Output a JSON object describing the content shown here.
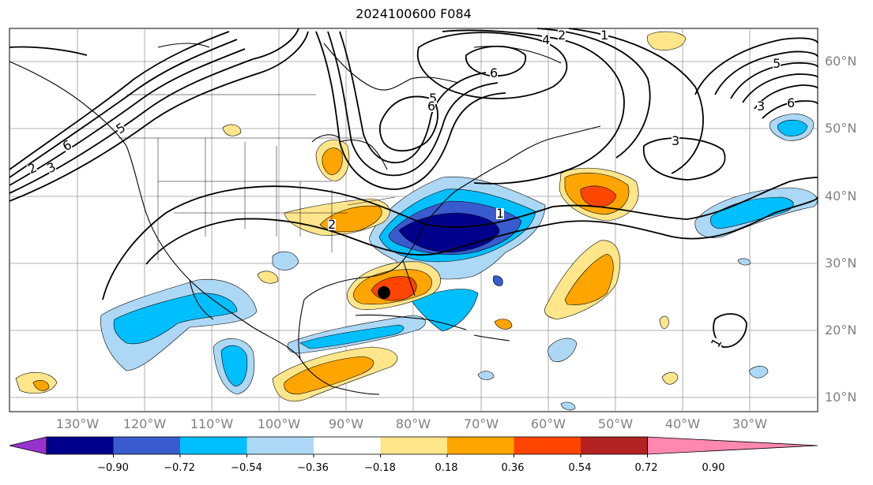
{
  "title": "2024100600 F084",
  "lat_labels": [
    "60°N",
    "50°N",
    "40°N",
    "30°N",
    "20°N",
    "10°N"
  ],
  "lon_labels": [
    "130°W",
    "120°W",
    "110°W",
    "100°W",
    "90°W",
    "80°W",
    "70°W",
    "60°W",
    "50°W",
    "40°W",
    "30°W"
  ],
  "contour_labels": [
    "6",
    "5",
    "2",
    "3",
    "4",
    "2",
    "1",
    "6",
    "5",
    "6",
    "3",
    "5",
    "6",
    "3",
    "1",
    "2",
    "1"
  ],
  "marker": {
    "name": "storm-center",
    "lon": -84.5,
    "lat": 25.8
  },
  "colorbar": {
    "ticks": [
      "−0.90",
      "−0.72",
      "−0.54",
      "−0.36",
      "−0.18",
      "0.18",
      "0.36",
      "0.54",
      "0.72",
      "0.90"
    ],
    "colors": [
      "#9932cc",
      "#00008b",
      "#3a5bcd",
      "#00bfff",
      "#add8f5",
      "#ffffff",
      "#ffe68a",
      "#ffa500",
      "#ff4500",
      "#b22222",
      "#ff88b0"
    ]
  }
}
